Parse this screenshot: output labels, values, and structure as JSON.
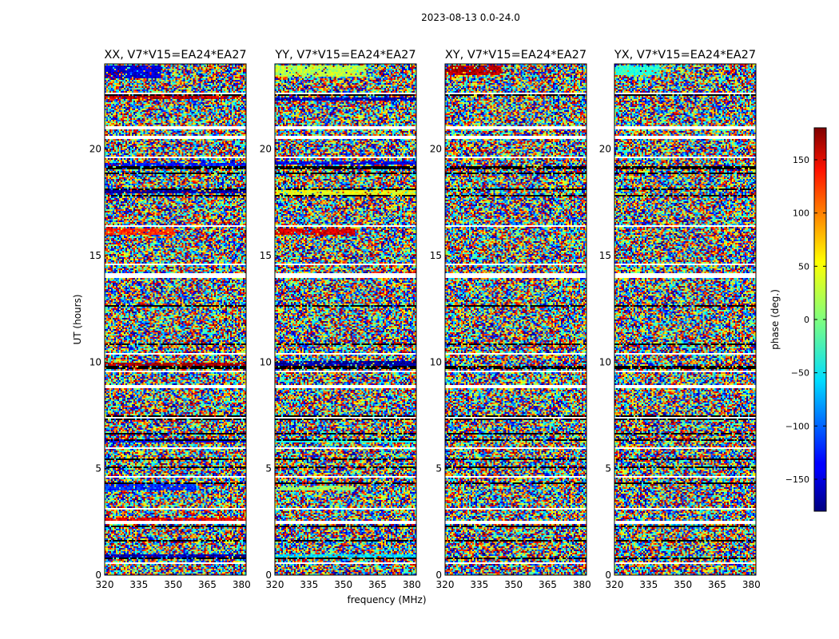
{
  "chart_data": {
    "type": "heatmap",
    "title": "2023-08-13 0.0-24.0",
    "xlabel": "frequency (MHz)",
    "ylabel": "UT (hours)",
    "xlim": [
      320,
      382
    ],
    "ylim": [
      0,
      24
    ],
    "xticks": [
      "320",
      "335",
      "350",
      "365",
      "380"
    ],
    "xtick_values": [
      320,
      335,
      350,
      365,
      380
    ],
    "yticks": [
      "0",
      "5",
      "10",
      "15",
      "20"
    ],
    "ytick_values": [
      0,
      5,
      10,
      15,
      20
    ],
    "colorbar": {
      "label": "phase (deg.)",
      "range": [
        -180,
        180
      ],
      "ticks": [
        "150",
        "100",
        "50",
        "0",
        "−50",
        "−100",
        "−150"
      ],
      "tick_values": [
        150,
        100,
        50,
        0,
        -50,
        -100,
        -150
      ],
      "colormap": "jet"
    },
    "panels": [
      {
        "id": "xx",
        "title": "XX, V7*V15=EA24*EA27"
      },
      {
        "id": "yy",
        "title": "YY, V7*V15=EA24*EA27"
      },
      {
        "id": "xy",
        "title": "XY, V7*V15=EA24*EA27"
      },
      {
        "id": "yx",
        "title": "YX, V7*V15=EA24*EA27"
      }
    ],
    "flagged_gaps_ut": [
      [
        0.5,
        0.6
      ],
      [
        2.4,
        2.55
      ],
      [
        3.05,
        3.15
      ],
      [
        4.55,
        4.65
      ],
      [
        5.95,
        6.0
      ],
      [
        7.35,
        7.45
      ],
      [
        8.8,
        8.9
      ],
      [
        9.55,
        9.6
      ],
      [
        10.35,
        10.45
      ],
      [
        13.95,
        14.2
      ],
      [
        14.55,
        14.6
      ],
      [
        16.35,
        16.45
      ],
      [
        17.15,
        17.2
      ],
      [
        19.55,
        19.65
      ],
      [
        20.45,
        20.6
      ],
      [
        20.95,
        21.05
      ],
      [
        22.55,
        22.65
      ]
    ],
    "coherent_bands": {
      "xx": [
        {
          "t0": 23.3,
          "t1": 23.9,
          "phase": -150,
          "f_end": 345
        },
        {
          "t0": 22.35,
          "t1": 22.5,
          "phase": 160,
          "f_end": 382
        },
        {
          "t0": 19.2,
          "t1": 19.35,
          "phase": -130,
          "f_end": 382
        },
        {
          "t0": 17.9,
          "t1": 18.05,
          "phase": -170,
          "f_end": 382
        },
        {
          "t0": 16.0,
          "t1": 16.3,
          "phase": 120,
          "f_end": 350
        },
        {
          "t0": 9.85,
          "t1": 10.0,
          "phase": 165,
          "f_end": 382
        },
        {
          "t0": 6.25,
          "t1": 6.4,
          "phase": -140,
          "f_end": 382
        },
        {
          "t0": 4.0,
          "t1": 4.25,
          "phase": -120,
          "f_end": 360
        },
        {
          "t0": 2.55,
          "t1": 2.7,
          "phase": 140,
          "f_end": 382
        },
        {
          "t0": 0.8,
          "t1": 0.95,
          "phase": -165,
          "f_end": 382
        }
      ],
      "yy": [
        {
          "t0": 23.4,
          "t1": 23.9,
          "phase": 20,
          "f_end": 360
        },
        {
          "t0": 22.3,
          "t1": 22.45,
          "phase": -160,
          "f_end": 382
        },
        {
          "t0": 19.25,
          "t1": 19.4,
          "phase": -140,
          "f_end": 382
        },
        {
          "t0": 17.8,
          "t1": 18.1,
          "phase": 40,
          "f_end": 382
        },
        {
          "t0": 16.0,
          "t1": 16.3,
          "phase": 150,
          "f_end": 355
        },
        {
          "t0": 9.85,
          "t1": 10.05,
          "phase": -170,
          "f_end": 382
        },
        {
          "t0": 6.2,
          "t1": 6.35,
          "phase": -40,
          "f_end": 382
        },
        {
          "t0": 3.95,
          "t1": 4.2,
          "phase": 10,
          "f_end": 355
        },
        {
          "t0": 0.8,
          "t1": 0.95,
          "phase": -60,
          "f_end": 382
        }
      ],
      "xy": [
        {
          "t0": 23.5,
          "t1": 23.9,
          "phase": 160,
          "f_end": 345
        }
      ],
      "yx": [
        {
          "t0": 23.5,
          "t1": 23.9,
          "phase": -30,
          "f_end": 340
        }
      ]
    }
  }
}
